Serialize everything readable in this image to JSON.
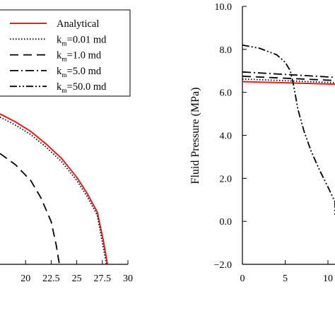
{
  "chart_data": [
    {
      "type": "line",
      "title": "",
      "xlabel": "",
      "ylabel": "",
      "xlim": [
        17.5,
        30
      ],
      "ylim": [
        0,
        1
      ],
      "x_ticks": [
        "20",
        "22.5",
        "25",
        "27.5",
        "30"
      ],
      "legend": {
        "placement": "top-right",
        "entries": [
          {
            "text": "Analytical",
            "style": "solid",
            "color": "#e01f1f"
          },
          {
            "text": "k",
            "sub": "m",
            "suffix": "=0.01 md",
            "style": "dotted",
            "color": "#000000"
          },
          {
            "text": "k",
            "sub": "m",
            "suffix": "=1.0 md",
            "style": "dashed",
            "color": "#000000"
          },
          {
            "text": "k",
            "sub": "m",
            "suffix": "=5.0 md",
            "style": "dashdot",
            "color": "#000000"
          },
          {
            "text": "k",
            "sub": "m",
            "suffix": "=50.0 md",
            "style": "dashdotdot",
            "color": "#000000"
          }
        ]
      },
      "series": [
        {
          "name": "Analytical",
          "style": "solid",
          "color": "#e01f1f",
          "x": [
            17.5,
            19,
            20.5,
            22,
            23.5,
            25,
            26,
            27,
            27.6,
            28.0
          ],
          "y": [
            0.95,
            0.9,
            0.84,
            0.76,
            0.67,
            0.55,
            0.45,
            0.33,
            0.15,
            0.0
          ]
        },
        {
          "name": "km=0.01 md",
          "style": "dotted",
          "color": "#000000",
          "x": [
            17.5,
            19,
            20.5,
            22,
            23.5,
            25,
            26,
            27,
            27.5,
            27.9
          ],
          "y": [
            0.93,
            0.88,
            0.82,
            0.74,
            0.65,
            0.53,
            0.43,
            0.31,
            0.14,
            0.0
          ]
        },
        {
          "name": "km=1.0 md",
          "style": "dashed",
          "color": "#000000",
          "x": [
            17.5,
            19,
            20.5,
            21.5,
            22.5,
            23.0,
            23.3
          ],
          "y": [
            0.7,
            0.63,
            0.53,
            0.42,
            0.27,
            0.12,
            0.0
          ]
        }
      ]
    },
    {
      "type": "line",
      "title": "",
      "ylabel": "Fluid Pressure (MPa)",
      "xlabel": "",
      "xlim": [
        0,
        12
      ],
      "ylim": [
        -2.0,
        10.0
      ],
      "y_ticks": [
        "10.0",
        "8.0",
        "6.0",
        "4.0",
        "2.0",
        "0.0",
        "−2.0"
      ],
      "x_ticks": [
        "0",
        "5",
        "10"
      ],
      "series": [
        {
          "name": "Analytical",
          "style": "solid",
          "color": "#e01f1f",
          "x": [
            0,
            12
          ],
          "y": [
            6.5,
            6.38
          ]
        },
        {
          "name": "km=0.01 md",
          "style": "dotted",
          "color": "#000000",
          "x": [
            0,
            12
          ],
          "y": [
            6.62,
            6.45
          ]
        },
        {
          "name": "km=1.0 md",
          "style": "dashed",
          "color": "#000000",
          "x": [
            0,
            12
          ],
          "y": [
            6.75,
            6.55
          ]
        },
        {
          "name": "km=5.0 md",
          "style": "dashdot",
          "color": "#000000",
          "x": [
            0,
            12
          ],
          "y": [
            6.95,
            6.7
          ]
        },
        {
          "name": "km=50.0 md",
          "style": "dashdotdot",
          "color": "#000000",
          "x": [
            0,
            2,
            4,
            5,
            5.6,
            6.0,
            6.5,
            7.2,
            8.0,
            9.0,
            10.0,
            11.0,
            12.0
          ],
          "y": [
            8.2,
            8.05,
            7.75,
            7.4,
            7.0,
            6.3,
            5.2,
            4.2,
            3.3,
            2.4,
            1.6,
            0.9,
            0.3
          ]
        }
      ]
    }
  ]
}
